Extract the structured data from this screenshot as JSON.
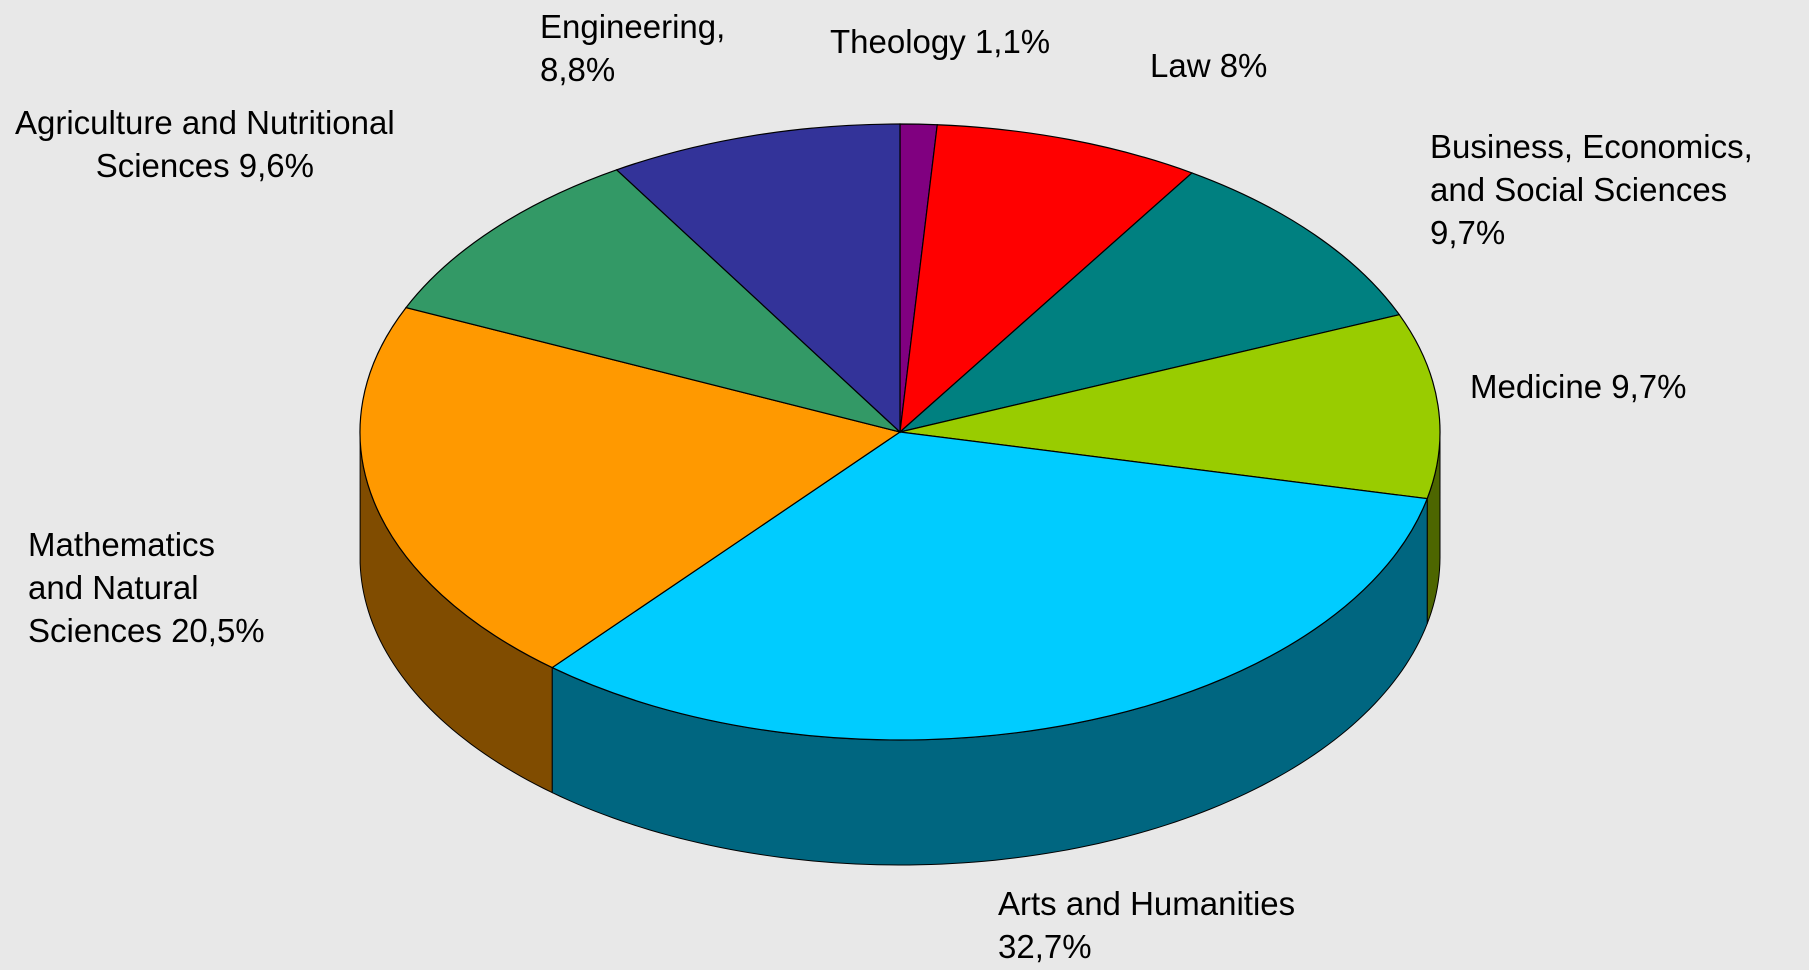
{
  "chart_data": {
    "type": "pie",
    "style": "3d",
    "title": "",
    "start_angle_deg": 90,
    "direction": "clockwise",
    "edge_color": "#000000",
    "slices": [
      {
        "category": "Theology",
        "value": 1.1,
        "label_lines": [
          "Theology 1,1%"
        ],
        "color": "#800080",
        "side_color": "#400040"
      },
      {
        "category": "Law",
        "value": 8.0,
        "label_lines": [
          "Law 8%"
        ],
        "color": "#ff0000",
        "side_color": "#800000"
      },
      {
        "category": "Business, Economics, and Social Sciences",
        "value": 9.7,
        "label_lines": [
          "Business, Economics,",
          "and Social Sciences",
          "9,7%"
        ],
        "color": "#008080",
        "side_color": "#004040"
      },
      {
        "category": "Medicine",
        "value": 9.7,
        "label_lines": [
          "Medicine 9,7%"
        ],
        "color": "#99cc00",
        "side_color": "#4d6600"
      },
      {
        "category": "Arts and Humanities",
        "value": 32.7,
        "label_lines": [
          "Arts and Humanities",
          "32,7%"
        ],
        "color": "#00ccff",
        "side_color": "#006680"
      },
      {
        "category": "Mathematics and Natural Sciences",
        "value": 20.5,
        "label_lines": [
          "Mathematics",
          "and Natural",
          "Sciences 20,5%"
        ],
        "color": "#ff9900",
        "side_color": "#804c00"
      },
      {
        "category": "Agriculture and Nutritional Sciences",
        "value": 9.6,
        "label_lines": [
          "Agriculture and Nutritional",
          "Sciences 9,6%"
        ],
        "color": "#339966",
        "side_color": "#1a4d33"
      },
      {
        "category": "Engineering",
        "value": 8.8,
        "label_lines": [
          "Engineering,",
          "8,8%"
        ],
        "color": "#333399",
        "side_color": "#1a1a4d"
      }
    ]
  }
}
